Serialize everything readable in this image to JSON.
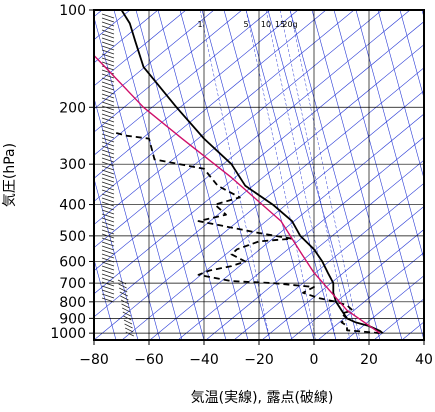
{
  "chart_data": {
    "type": "line",
    "title": "",
    "xlabel": "気温(実線), 露点(破線)",
    "ylabel": "気圧(hPa)",
    "xlim": [
      -80,
      40
    ],
    "ylim": [
      1050,
      100
    ],
    "y_scale": "log",
    "grid": true,
    "x_ticks": [
      -80,
      -60,
      -40,
      -20,
      0,
      20,
      40
    ],
    "y_ticks": [
      100,
      200,
      300,
      400,
      500,
      600,
      700,
      800,
      900,
      1000
    ],
    "mixing_ratio_labels": [
      "1",
      "5",
      "10",
      "15",
      "20g"
    ],
    "colors": {
      "temperature": "#000000",
      "dewpoint": "#000000",
      "parcel": "#d0106a",
      "adiabat": "#2a3bd6",
      "grid": "#000000"
    },
    "series": [
      {
        "style": "solid",
        "points": [
          [
            25,
            1000
          ],
          [
            24,
            985
          ],
          [
            20,
            950
          ],
          [
            15,
            925
          ],
          [
            12,
            900
          ],
          [
            10,
            850
          ],
          [
            8,
            800
          ],
          [
            7,
            750
          ],
          [
            7,
            700
          ],
          [
            5,
            650
          ],
          [
            3,
            600
          ],
          [
            0,
            550
          ],
          [
            -5,
            500
          ],
          [
            -8,
            450
          ],
          [
            -15,
            400
          ],
          [
            -25,
            350
          ],
          [
            -30,
            300
          ],
          [
            -40,
            250
          ],
          [
            -50,
            200
          ],
          [
            -62,
            150
          ],
          [
            -65,
            125
          ],
          [
            -67,
            110
          ],
          [
            -70,
            100
          ]
        ]
      },
      {
        "style": "dashed",
        "points": [
          [
            24,
            1000
          ],
          [
            18,
            990
          ],
          [
            12,
            980
          ],
          [
            12,
            950
          ],
          [
            10,
            925
          ],
          [
            12,
            900
          ],
          [
            10,
            870
          ],
          [
            14,
            850
          ],
          [
            12,
            820
          ],
          [
            8,
            800
          ],
          [
            2,
            780
          ],
          [
            -4,
            750
          ],
          [
            0,
            720
          ],
          [
            -15,
            700
          ],
          [
            -30,
            690
          ],
          [
            -42,
            660
          ],
          [
            -38,
            640
          ],
          [
            -30,
            620
          ],
          [
            -25,
            600
          ],
          [
            -30,
            570
          ],
          [
            -28,
            550
          ],
          [
            -20,
            520
          ],
          [
            -8,
            510
          ],
          [
            -20,
            490
          ],
          [
            -42,
            450
          ],
          [
            -32,
            430
          ],
          [
            -36,
            400
          ],
          [
            -27,
            380
          ],
          [
            -35,
            350
          ],
          [
            -40,
            310
          ],
          [
            -58,
            290
          ],
          [
            -60,
            250
          ],
          [
            -68,
            245
          ],
          [
            -72,
            240
          ],
          [
            -72,
            238
          ]
        ]
      },
      {
        "style": "solid",
        "color": "parcel",
        "points": [
          [
            24,
            1000
          ],
          [
            12,
            850
          ],
          [
            0,
            650
          ],
          [
            -5,
            560
          ],
          [
            -12,
            450
          ],
          [
            -30,
            330
          ],
          [
            -48,
            250
          ],
          [
            -62,
            200
          ],
          [
            -76,
            150
          ],
          [
            -85,
            125
          ]
        ]
      }
    ]
  }
}
